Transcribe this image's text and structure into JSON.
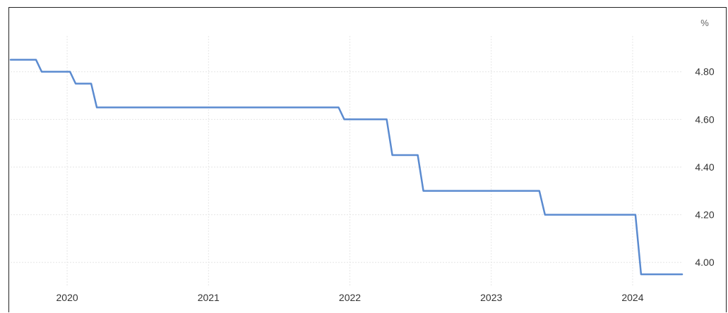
{
  "chart_data": {
    "type": "line",
    "title": "",
    "xlabel": "",
    "ylabel": "",
    "unit": "%",
    "x_tick_labels": [
      "2020",
      "2021",
      "2022",
      "2023",
      "2024"
    ],
    "y_tick_labels": [
      "4.00",
      "4.20",
      "4.40",
      "4.60",
      "4.80"
    ],
    "xlim": [
      2019.6,
      2024.35
    ],
    "ylim": [
      3.9,
      4.95
    ],
    "grid": true,
    "series": [
      {
        "color": "#5b8bd0",
        "points": [
          {
            "x": 2019.6,
            "y": 4.85
          },
          {
            "x": 2019.78,
            "y": 4.85
          },
          {
            "x": 2019.82,
            "y": 4.8
          },
          {
            "x": 2020.02,
            "y": 4.8
          },
          {
            "x": 2020.06,
            "y": 4.75
          },
          {
            "x": 2020.17,
            "y": 4.75
          },
          {
            "x": 2020.21,
            "y": 4.65
          },
          {
            "x": 2021.92,
            "y": 4.65
          },
          {
            "x": 2021.96,
            "y": 4.6
          },
          {
            "x": 2022.26,
            "y": 4.6
          },
          {
            "x": 2022.3,
            "y": 4.45
          },
          {
            "x": 2022.48,
            "y": 4.45
          },
          {
            "x": 2022.52,
            "y": 4.3
          },
          {
            "x": 2023.34,
            "y": 4.3
          },
          {
            "x": 2023.38,
            "y": 4.2
          },
          {
            "x": 2024.02,
            "y": 4.2
          },
          {
            "x": 2024.06,
            "y": 3.95
          },
          {
            "x": 2024.35,
            "y": 3.95
          }
        ]
      }
    ]
  }
}
